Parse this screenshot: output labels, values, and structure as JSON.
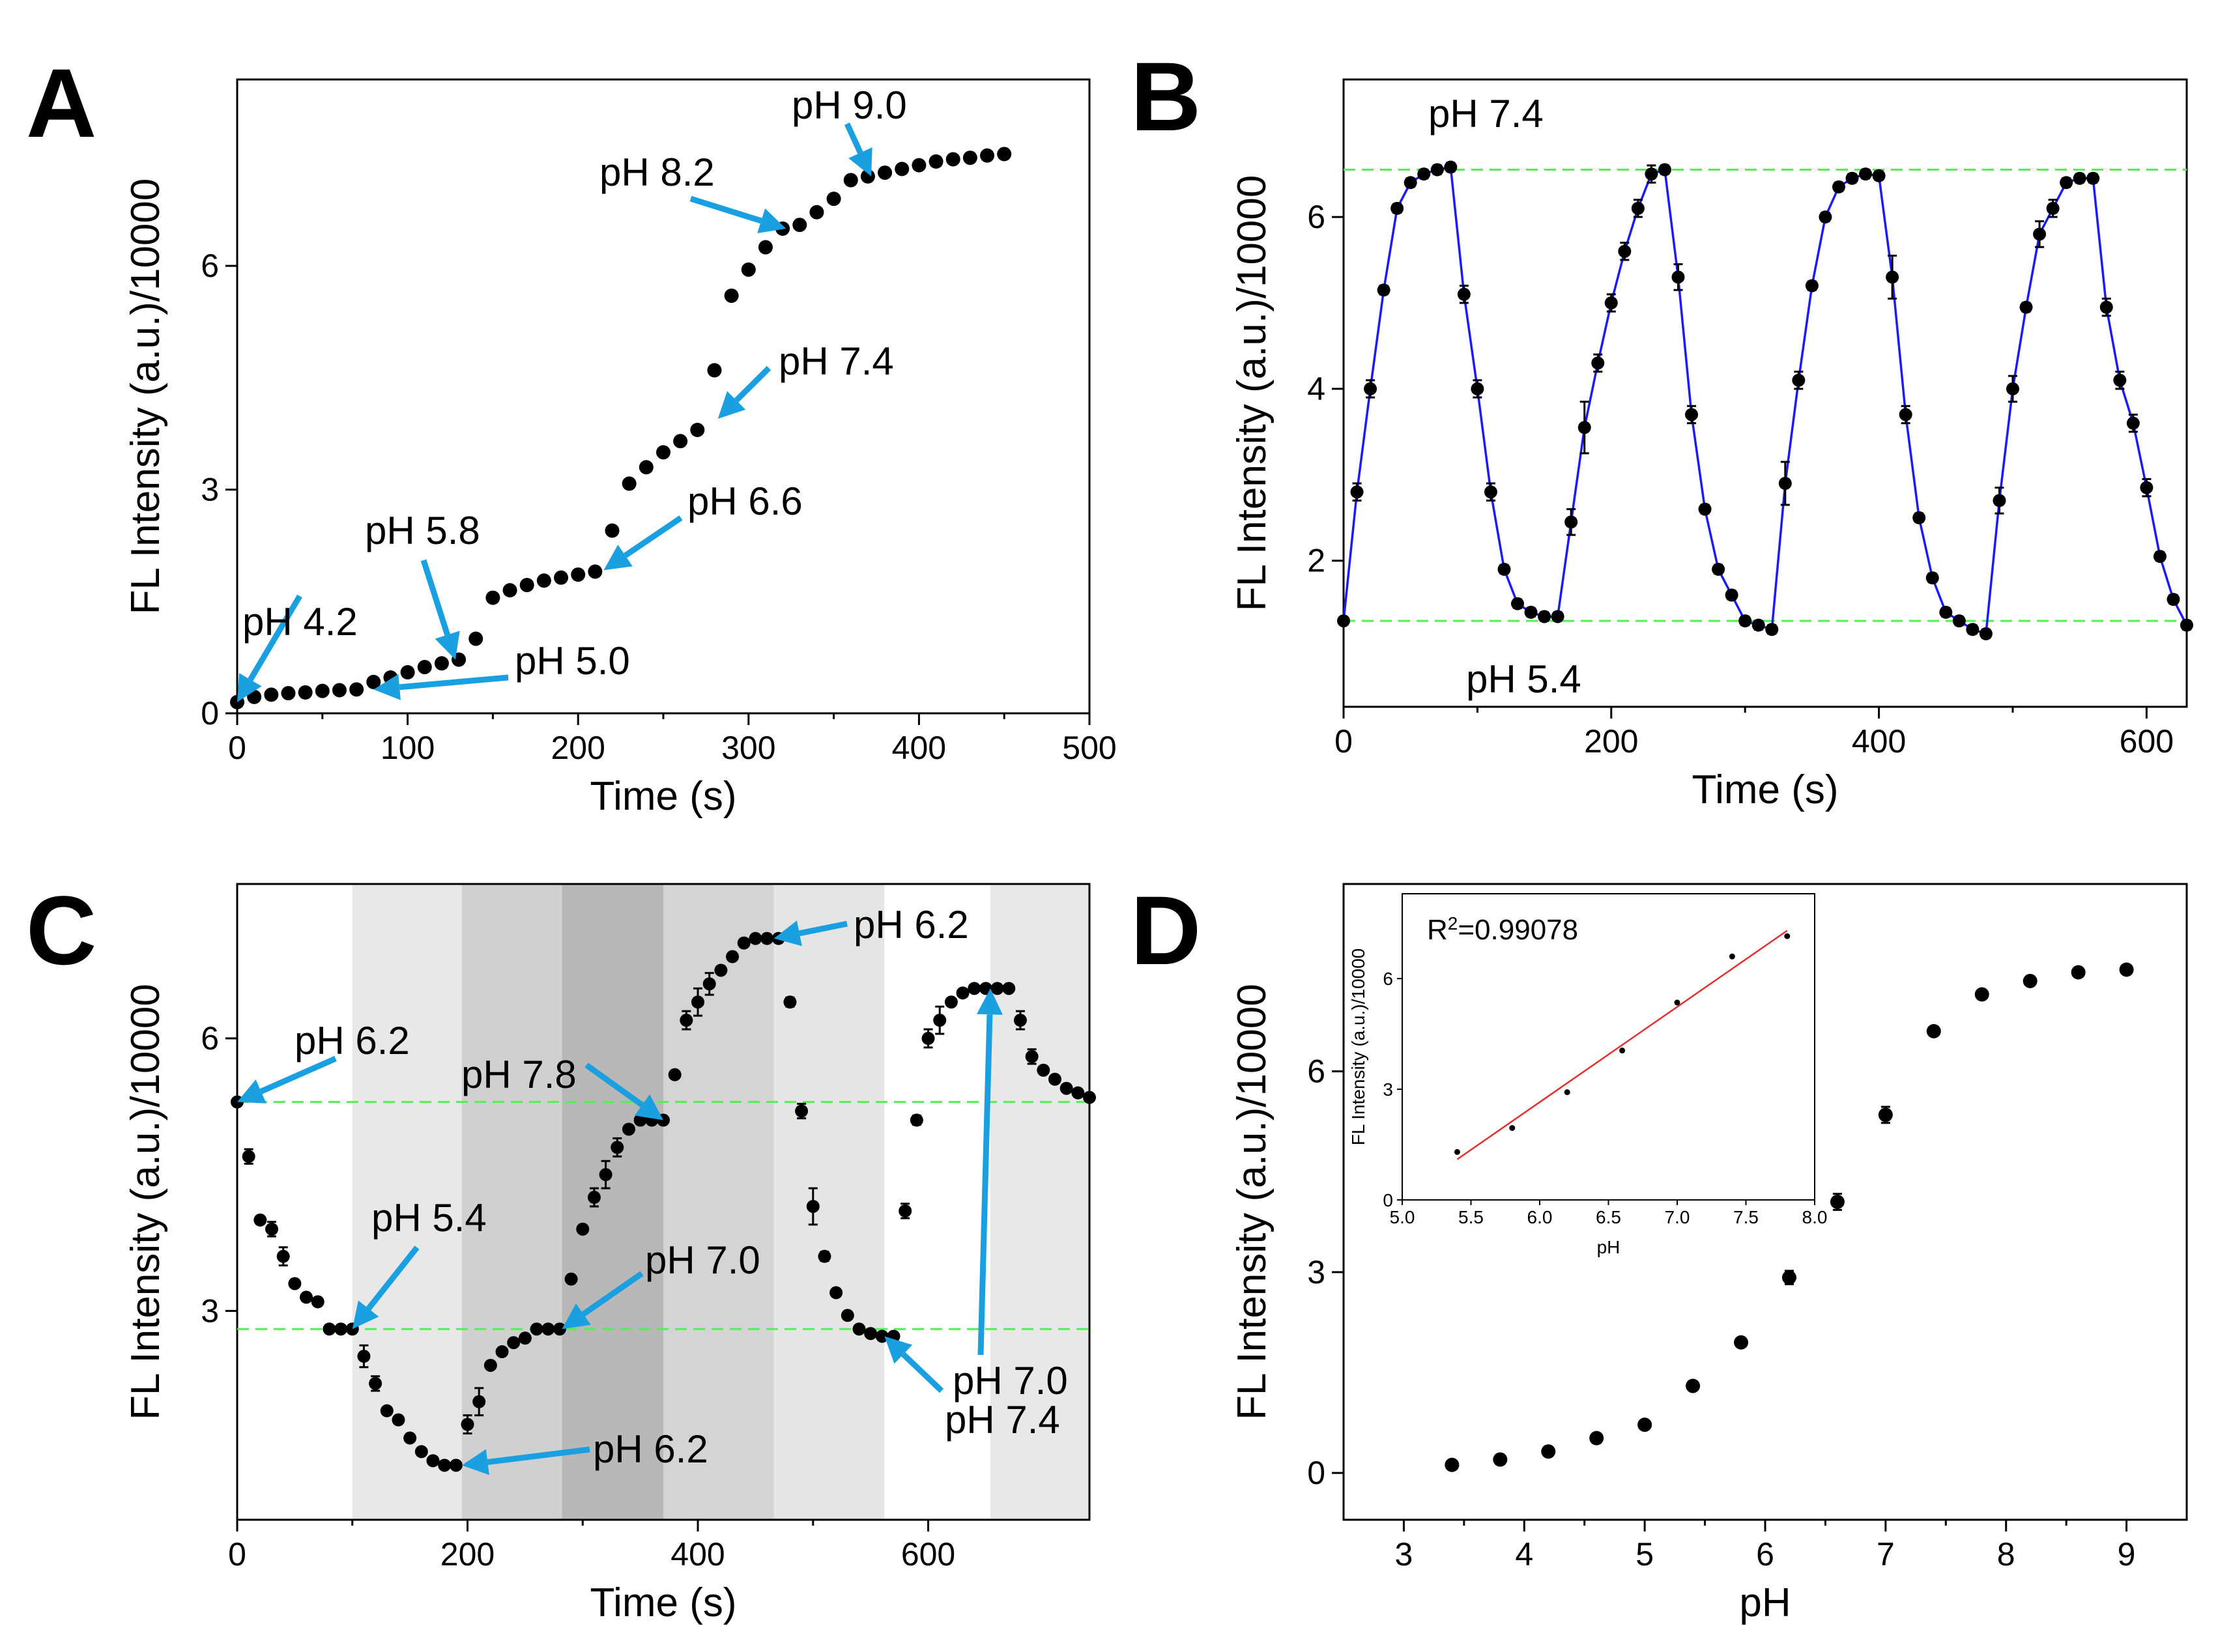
{
  "panels": {
    "A": {
      "letter": "A"
    },
    "B": {
      "letter": "B"
    },
    "C": {
      "letter": "C"
    },
    "D": {
      "letter": "D"
    }
  },
  "colors": {
    "arrow": "#1a9fe0",
    "guide": "#55ee55",
    "fit": "#1a1aff",
    "inset_fit": "#e03030",
    "point": "#000000"
  },
  "chart_data": [
    {
      "panel": "A",
      "type": "scatter",
      "xlabel": "Time (s)",
      "ylabel": "FL Intensity (a.u.)/10000",
      "xlim": [
        0,
        500
      ],
      "ylim": [
        0,
        8.5
      ],
      "xticks": [
        0,
        100,
        200,
        300,
        400,
        500
      ],
      "yticks": [
        0,
        3,
        6
      ],
      "series": [
        {
          "name": "FL",
          "x": [
            0,
            10,
            20,
            30,
            40,
            50,
            60,
            70,
            80,
            90,
            100,
            110,
            120,
            130,
            140,
            150,
            160,
            170,
            180,
            190,
            200,
            210,
            220,
            230,
            240,
            250,
            260,
            270,
            280,
            290,
            300,
            310,
            320,
            330,
            340,
            350,
            360,
            370,
            380,
            390,
            400,
            410,
            420,
            430,
            440,
            450
          ],
          "y": [
            0.15,
            0.22,
            0.25,
            0.27,
            0.28,
            0.3,
            0.31,
            0.32,
            0.42,
            0.48,
            0.55,
            0.62,
            0.67,
            0.72,
            1.0,
            1.55,
            1.65,
            1.72,
            1.78,
            1.82,
            1.86,
            1.9,
            2.45,
            3.08,
            3.3,
            3.5,
            3.65,
            3.8,
            4.6,
            5.6,
            5.95,
            6.25,
            6.5,
            6.55,
            6.72,
            6.9,
            7.15,
            7.2,
            7.25,
            7.3,
            7.35,
            7.4,
            7.43,
            7.45,
            7.48,
            7.5
          ]
        }
      ],
      "annotations": [
        {
          "text": "pH 4.2",
          "x": 0,
          "y": 0.15
        },
        {
          "text": "pH 5.8",
          "x": 128,
          "y": 0.72
        },
        {
          "text": "pH 5.0",
          "x": 80,
          "y": 0.32
        },
        {
          "text": "pH 6.6",
          "x": 215,
          "y": 1.92
        },
        {
          "text": "pH 7.4",
          "x": 282,
          "y": 3.95
        },
        {
          "text": "pH 8.2",
          "x": 322,
          "y": 6.5
        },
        {
          "text": "pH 9.0",
          "x": 372,
          "y": 7.2
        }
      ]
    },
    {
      "panel": "B",
      "type": "line",
      "xlabel": "Time (s)",
      "ylabel": "FL Intensity (a.u.)/10000",
      "xlim": [
        0,
        630
      ],
      "ylim": [
        0.3,
        7.6
      ],
      "xticks": [
        0,
        200,
        400,
        600
      ],
      "yticks": [
        2,
        4,
        6
      ],
      "guides": [
        6.55,
        1.3
      ],
      "series": [
        {
          "name": "FL",
          "x": [
            0,
            10,
            20,
            30,
            40,
            50,
            60,
            70,
            80,
            90,
            100,
            110,
            120,
            130,
            140,
            150,
            160,
            170,
            180,
            190,
            200,
            210,
            220,
            230,
            240,
            250,
            260,
            270,
            280,
            290,
            300,
            310,
            320,
            330,
            340,
            350,
            360,
            370,
            380,
            390,
            400,
            410,
            420,
            430,
            440,
            450,
            460,
            470,
            480,
            490,
            500,
            510,
            520,
            530,
            540,
            550,
            560,
            570,
            580,
            590,
            600,
            610,
            620,
            630
          ],
          "y": [
            1.3,
            2.8,
            4.0,
            5.15,
            6.1,
            6.4,
            6.5,
            6.55,
            6.58,
            5.1,
            4.0,
            2.8,
            1.9,
            1.5,
            1.4,
            1.35,
            1.35,
            2.45,
            3.55,
            4.3,
            5.0,
            5.6,
            6.1,
            6.5,
            6.55,
            5.3,
            3.7,
            2.6,
            1.9,
            1.6,
            1.3,
            1.25,
            1.2,
            2.9,
            4.1,
            5.2,
            6.0,
            6.35,
            6.45,
            6.5,
            6.48,
            5.3,
            3.7,
            2.5,
            1.8,
            1.4,
            1.3,
            1.2,
            1.15,
            2.7,
            4.0,
            4.95,
            5.8,
            6.1,
            6.4,
            6.45,
            6.45,
            4.95,
            4.1,
            3.6,
            2.85,
            2.05,
            1.55,
            1.25
          ],
          "err": [
            0,
            0.1,
            0.1,
            0.05,
            0.05,
            0.05,
            0.05,
            0.05,
            0.05,
            0.1,
            0.1,
            0.1,
            0.05,
            0.05,
            0.05,
            0.05,
            0.05,
            0.15,
            0.3,
            0.1,
            0.1,
            0.1,
            0.1,
            0.1,
            0.05,
            0.15,
            0.1,
            0.05,
            0.05,
            0.05,
            0.05,
            0.05,
            0.05,
            0.25,
            0.1,
            0.05,
            0.05,
            0.05,
            0.05,
            0.05,
            0.05,
            0.25,
            0.1,
            0.05,
            0.05,
            0.05,
            0.05,
            0.05,
            0.05,
            0.15,
            0.15,
            0.05,
            0.15,
            0.1,
            0.05,
            0.05,
            0.05,
            0.1,
            0.1,
            0.1,
            0.1,
            0.05,
            0.05,
            0.05
          ]
        }
      ],
      "annotations": [
        {
          "text": "pH 7.4",
          "x": 80,
          "y": 7.0
        },
        {
          "text": "pH 5.4",
          "x": 100,
          "y": 0.75
        }
      ]
    },
    {
      "panel": "C",
      "type": "scatter",
      "xlabel": "Time (s)",
      "ylabel": "FL Intensity (a.u.)/10000",
      "xlim": [
        0,
        740
      ],
      "ylim": [
        0.7,
        7.7
      ],
      "xticks": [
        0,
        200,
        400,
        600
      ],
      "yticks": [
        3,
        6
      ],
      "guides": [
        5.3,
        2.8
      ],
      "bands": [
        {
          "from": 0,
          "to": 100,
          "shade": "#ffffff"
        },
        {
          "from": 100,
          "to": 195,
          "shade": "#e8e8e8"
        },
        {
          "from": 195,
          "to": 282,
          "shade": "#d0d0d0"
        },
        {
          "from": 282,
          "to": 370,
          "shade": "#b8b8b8"
        },
        {
          "from": 370,
          "to": 466,
          "shade": "#d4d4d4"
        },
        {
          "from": 466,
          "to": 562,
          "shade": "#e5e5e5"
        },
        {
          "from": 562,
          "to": 654,
          "shade": "#ffffff"
        },
        {
          "from": 654,
          "to": 740,
          "shade": "#e8e8e8"
        }
      ],
      "series": [
        {
          "name": "FL",
          "x": [
            0,
            10,
            20,
            30,
            40,
            50,
            60,
            70,
            80,
            90,
            100,
            110,
            120,
            130,
            140,
            150,
            160,
            170,
            180,
            190,
            200,
            210,
            220,
            230,
            240,
            250,
            260,
            270,
            280,
            290,
            300,
            310,
            320,
            330,
            340,
            350,
            360,
            370,
            380,
            390,
            400,
            410,
            420,
            430,
            440,
            450,
            460,
            470,
            480,
            490,
            500,
            510,
            520,
            530,
            540,
            550,
            560,
            570,
            580,
            590,
            600,
            610,
            620,
            630,
            640,
            650,
            660,
            670,
            680,
            690,
            700,
            710,
            720,
            730,
            740
          ],
          "y": [
            5.3,
            4.7,
            4.0,
            3.9,
            3.6,
            3.3,
            3.15,
            3.1,
            2.8,
            2.8,
            2.8,
            2.5,
            2.2,
            1.9,
            1.8,
            1.6,
            1.45,
            1.35,
            1.3,
            1.3,
            1.75,
            2.0,
            2.4,
            2.55,
            2.65,
            2.7,
            2.8,
            2.8,
            2.8,
            3.35,
            3.9,
            4.25,
            4.5,
            4.8,
            5.0,
            5.1,
            5.1,
            5.1,
            5.6,
            6.2,
            6.4,
            6.6,
            6.75,
            6.9,
            7.05,
            7.1,
            7.1,
            7.1,
            6.4,
            5.2,
            4.15,
            3.6,
            3.2,
            2.95,
            2.8,
            2.75,
            2.72,
            2.72,
            4.1,
            5.1,
            6.0,
            6.2,
            6.4,
            6.5,
            6.55,
            6.55,
            6.55,
            6.55,
            6.2,
            5.8,
            5.65,
            5.55,
            5.45,
            5.4,
            5.35
          ],
          "err": [
            0,
            0.08,
            0,
            0.08,
            0.1,
            0,
            0,
            0,
            0,
            0,
            0,
            0.12,
            0.08,
            0,
            0,
            0,
            0,
            0,
            0,
            0,
            0.1,
            0.15,
            0,
            0,
            0,
            0,
            0,
            0,
            0,
            0,
            0,
            0.1,
            0.15,
            0.1,
            0,
            0,
            0,
            0,
            0,
            0.1,
            0.15,
            0.12,
            0,
            0,
            0,
            0,
            0,
            0,
            0.05,
            0.08,
            0.2,
            0.05,
            0,
            0,
            0,
            0,
            0,
            0,
            0.08,
            0.05,
            0.1,
            0.15,
            0,
            0,
            0,
            0,
            0,
            0,
            0.1,
            0.08,
            0,
            0,
            0,
            0,
            0
          ]
        }
      ],
      "annotations": [
        {
          "text": "pH 6.2",
          "x": 0,
          "y": 5.3
        },
        {
          "text": "pH 5.4",
          "x": 100,
          "y": 2.8
        },
        {
          "text": "pH 7.8",
          "x": 370,
          "y": 5.1
        },
        {
          "text": "pH 7.0",
          "x": 282,
          "y": 2.8
        },
        {
          "text": "pH 6.2",
          "x": 195,
          "y": 1.3
        },
        {
          "text": "pH 6.2",
          "x": 466,
          "y": 7.1
        },
        {
          "text": "pH 7.0",
          "x": 654,
          "y": 6.55
        },
        {
          "text": "pH 7.4",
          "x": 562,
          "y": 2.72
        }
      ]
    },
    {
      "panel": "D",
      "type": "scatter",
      "xlabel": "pH",
      "ylabel": "FL Intensity (a.u.)/10000",
      "xlim": [
        2.5,
        9.5
      ],
      "ylim": [
        -0.7,
        8.8
      ],
      "xticks": [
        3,
        4,
        5,
        6,
        7,
        8,
        9
      ],
      "yticks": [
        0,
        3,
        6
      ],
      "series": [
        {
          "name": "FL",
          "x": [
            3.4,
            3.8,
            4.2,
            4.6,
            5.0,
            5.4,
            5.8,
            6.2,
            6.6,
            7.0,
            7.4,
            7.8,
            8.2,
            8.6,
            9.0
          ],
          "y": [
            0.12,
            0.2,
            0.32,
            0.52,
            0.72,
            1.3,
            1.95,
            2.92,
            4.05,
            5.35,
            6.6,
            7.15,
            7.35,
            7.48,
            7.52
          ],
          "err": [
            0.05,
            0.05,
            0.05,
            0.05,
            0.05,
            0.05,
            0.05,
            0.1,
            0.12,
            0.12,
            0.05,
            0.05,
            0.05,
            0.05,
            0.05
          ]
        }
      ],
      "inset": {
        "type": "scatter",
        "xlabel": "pH",
        "ylabel": "FL Intensity (a.u.)/10000",
        "xlim": [
          5.0,
          8.0
        ],
        "ylim": [
          0,
          8.3
        ],
        "xticks": [
          "5.0",
          "5.5",
          "6.0",
          "6.5",
          "7.0",
          "7.5",
          "8.0"
        ],
        "yticks": [
          0,
          3,
          6
        ],
        "r2": "R²=0.99078",
        "r2_prefix": "R",
        "r2_sup": "2",
        "r2_value": "=0.99078",
        "x": [
          5.4,
          5.8,
          6.2,
          6.6,
          7.0,
          7.4,
          7.8
        ],
        "y": [
          1.3,
          1.95,
          2.92,
          4.05,
          5.35,
          6.6,
          7.15
        ],
        "fit": {
          "x0": 5.4,
          "y0": 1.1,
          "x1": 7.8,
          "y1": 7.3
        }
      }
    }
  ]
}
